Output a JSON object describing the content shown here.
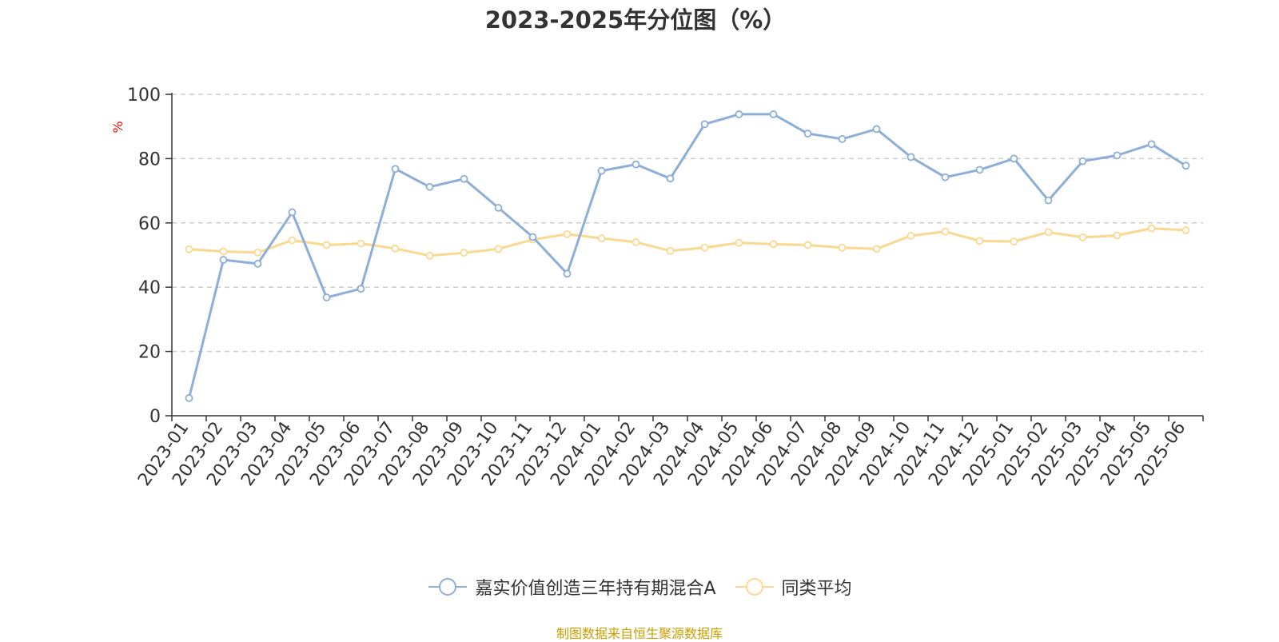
{
  "chart_data": {
    "type": "line",
    "title": "2023-2025年分位图（%）",
    "ylabel": "%",
    "ylim": [
      0,
      100
    ],
    "yticks": [
      0,
      20,
      40,
      60,
      80,
      100
    ],
    "grid": "horizontal dashed",
    "legend_position": "bottom",
    "categories": [
      "2023-01",
      "2023-02",
      "2023-03",
      "2023-04",
      "2023-05",
      "2023-06",
      "2023-07",
      "2023-08",
      "2023-09",
      "2023-10",
      "2023-11",
      "2023-12",
      "2024-01",
      "2024-02",
      "2024-03",
      "2024-04",
      "2024-05",
      "2024-06",
      "2024-07",
      "2024-08",
      "2024-09",
      "2024-10",
      "2024-11",
      "2024-12",
      "2025-01",
      "2025-02",
      "2025-03",
      "2025-04",
      "2025-05",
      "2025-06"
    ],
    "series": [
      {
        "name": "嘉实价值创造三年持有期混合A",
        "color": "#8caed9",
        "values": [
          5.5,
          48.5,
          47.3,
          63.3,
          36.8,
          39.5,
          76.8,
          71.2,
          73.7,
          64.7,
          55.6,
          44.2,
          76.2,
          78.2,
          73.8,
          90.7,
          93.8,
          93.8,
          87.8,
          86.1,
          89.2,
          80.5,
          74.2,
          76.5,
          80.0,
          67.0,
          79.2,
          81.0,
          84.5,
          77.8
        ]
      },
      {
        "name": "同类平均",
        "color": "#fbd88f",
        "values": [
          51.8,
          51.1,
          50.8,
          54.6,
          53.1,
          53.6,
          52.0,
          49.8,
          50.7,
          51.9,
          54.8,
          56.5,
          55.2,
          54.0,
          51.3,
          52.3,
          53.8,
          53.4,
          53.1,
          52.3,
          51.9,
          56.0,
          57.3,
          54.4,
          54.2,
          57.1,
          55.5,
          56.1,
          58.3,
          57.7
        ]
      }
    ]
  },
  "source_note": "制图数据来自恒生聚源数据库",
  "colors": {
    "axis": "#333333",
    "grid": "#cccccc",
    "ylabel": "#ff0000",
    "source": "#c8a000"
  }
}
